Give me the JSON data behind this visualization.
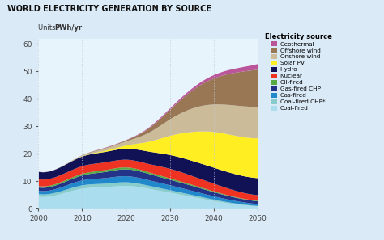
{
  "title": "WORLD ELECTRICITY GENERATION BY SOURCE",
  "units_label_normal": "Units: ",
  "units_label_bold": "PWh/yr",
  "legend_title": "Electricity source",
  "ylim": [
    0,
    62
  ],
  "yticks": [
    0,
    10,
    20,
    30,
    40,
    50,
    60
  ],
  "xlim": [
    2000,
    2050
  ],
  "xticks": [
    2000,
    2010,
    2020,
    2030,
    2040,
    2050
  ],
  "bg_color": "#daeaf7",
  "plot_bg_color": "#e8f4fc",
  "years": [
    2000,
    2005,
    2010,
    2015,
    2020,
    2025,
    2030,
    2035,
    2040,
    2045,
    2050
  ],
  "sources": [
    "Coal-fired",
    "Coal-fired CHP*",
    "Gas-fired",
    "Gas-fired CHP",
    "Oil-fired",
    "Nuclear",
    "Hydro",
    "Solar PV",
    "Onshore wind",
    "Offshore wind",
    "Geothermal"
  ],
  "colors": [
    "#aaddee",
    "#88cccc",
    "#2288cc",
    "#223388",
    "#55aa44",
    "#ee3322",
    "#111155",
    "#ffee22",
    "#ccbb99",
    "#997755",
    "#bb5599"
  ],
  "data": {
    "Coal-fired": [
      4.5,
      5.5,
      7.5,
      8.0,
      8.5,
      7.5,
      6.0,
      4.5,
      3.0,
      1.8,
      1.0
    ],
    "Coal-fired CHP*": [
      1.0,
      1.0,
      1.2,
      1.3,
      1.3,
      1.1,
      0.9,
      0.7,
      0.5,
      0.3,
      0.2
    ],
    "Gas-fired": [
      1.2,
      1.4,
      1.8,
      2.0,
      2.2,
      2.0,
      1.8,
      1.5,
      1.2,
      0.9,
      0.7
    ],
    "Gas-fired CHP": [
      1.2,
      1.4,
      1.8,
      2.2,
      2.5,
      2.3,
      2.0,
      1.8,
      1.5,
      1.2,
      1.0
    ],
    "Oil-fired": [
      0.5,
      0.5,
      0.6,
      0.7,
      0.7,
      0.6,
      0.5,
      0.4,
      0.3,
      0.2,
      0.2
    ],
    "Nuclear": [
      2.5,
      2.6,
      2.8,
      2.8,
      2.8,
      3.0,
      3.5,
      3.2,
      2.8,
      2.3,
      2.0
    ],
    "Hydro": [
      2.7,
      2.9,
      3.5,
      3.8,
      4.0,
      4.5,
      5.0,
      5.5,
      5.8,
      6.0,
      6.2
    ],
    "Solar PV": [
      0.0,
      0.0,
      0.1,
      0.4,
      1.2,
      3.5,
      7.0,
      10.5,
      13.0,
      14.0,
      14.5
    ],
    "Onshore wind": [
      0.0,
      0.1,
      0.3,
      0.8,
      1.5,
      3.2,
      6.0,
      8.5,
      10.0,
      11.0,
      11.5
    ],
    "Offshore wind": [
      0.0,
      0.0,
      0.1,
      0.2,
      0.4,
      1.5,
      3.5,
      6.5,
      9.5,
      12.0,
      13.5
    ],
    "Geothermal": [
      0.0,
      0.0,
      0.0,
      0.1,
      0.1,
      0.3,
      0.5,
      0.8,
      1.2,
      1.5,
      2.0
    ]
  }
}
